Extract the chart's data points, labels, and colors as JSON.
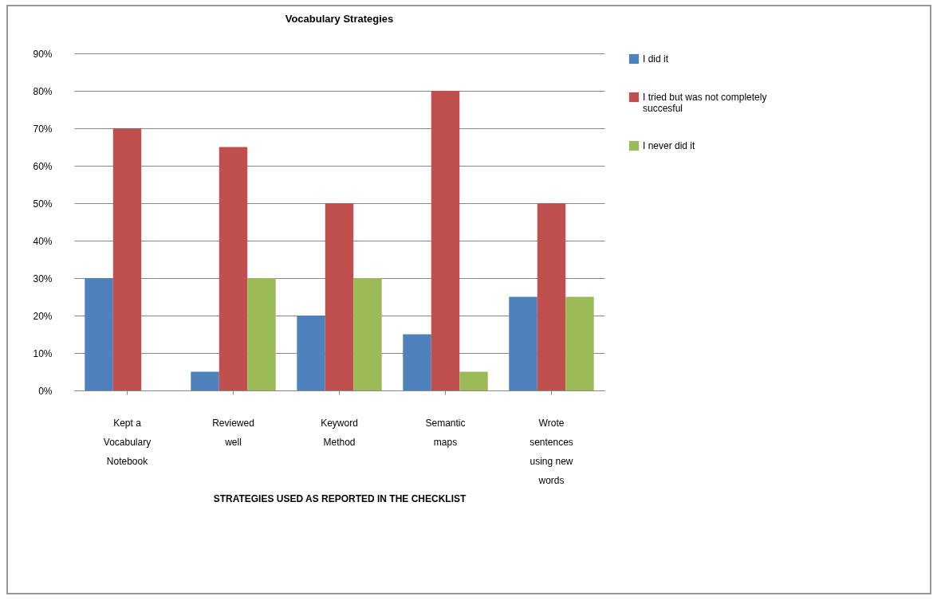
{
  "chart_data": {
    "type": "bar",
    "title": "Vocabulary Strategies",
    "xlabel": "STRATEGIES USED AS REPORTED IN THE CHECKLIST",
    "categories": [
      "Kept a Vocabulary Notebook",
      "Reviewed well",
      "Keyword Method",
      "Semantic maps",
      "Wrote sentences using new words"
    ],
    "series": [
      {
        "name": "I did it",
        "color": "#4f81bd",
        "values": [
          30,
          5,
          20,
          15,
          25
        ]
      },
      {
        "name": "I tried but was not completely succesful",
        "color": "#c0504d",
        "values": [
          70,
          65,
          50,
          80,
          50
        ]
      },
      {
        "name": "I never did it",
        "color": "#9bbb59",
        "values": [
          0,
          30,
          30,
          5,
          25
        ]
      }
    ],
    "ylim": [
      0,
      90
    ],
    "yticks": [
      {
        "value": 0,
        "label": "0%"
      },
      {
        "value": 10,
        "label": "10%"
      },
      {
        "value": 20,
        "label": "20%"
      },
      {
        "value": 30,
        "label": "30%"
      },
      {
        "value": 40,
        "label": "40%"
      },
      {
        "value": 50,
        "label": "50%"
      },
      {
        "value": 60,
        "label": "60%"
      },
      {
        "value": 70,
        "label": "70%"
      },
      {
        "value": 80,
        "label": "80%"
      },
      {
        "value": 90,
        "label": "90%"
      }
    ],
    "grid": "y",
    "legend": "right"
  }
}
